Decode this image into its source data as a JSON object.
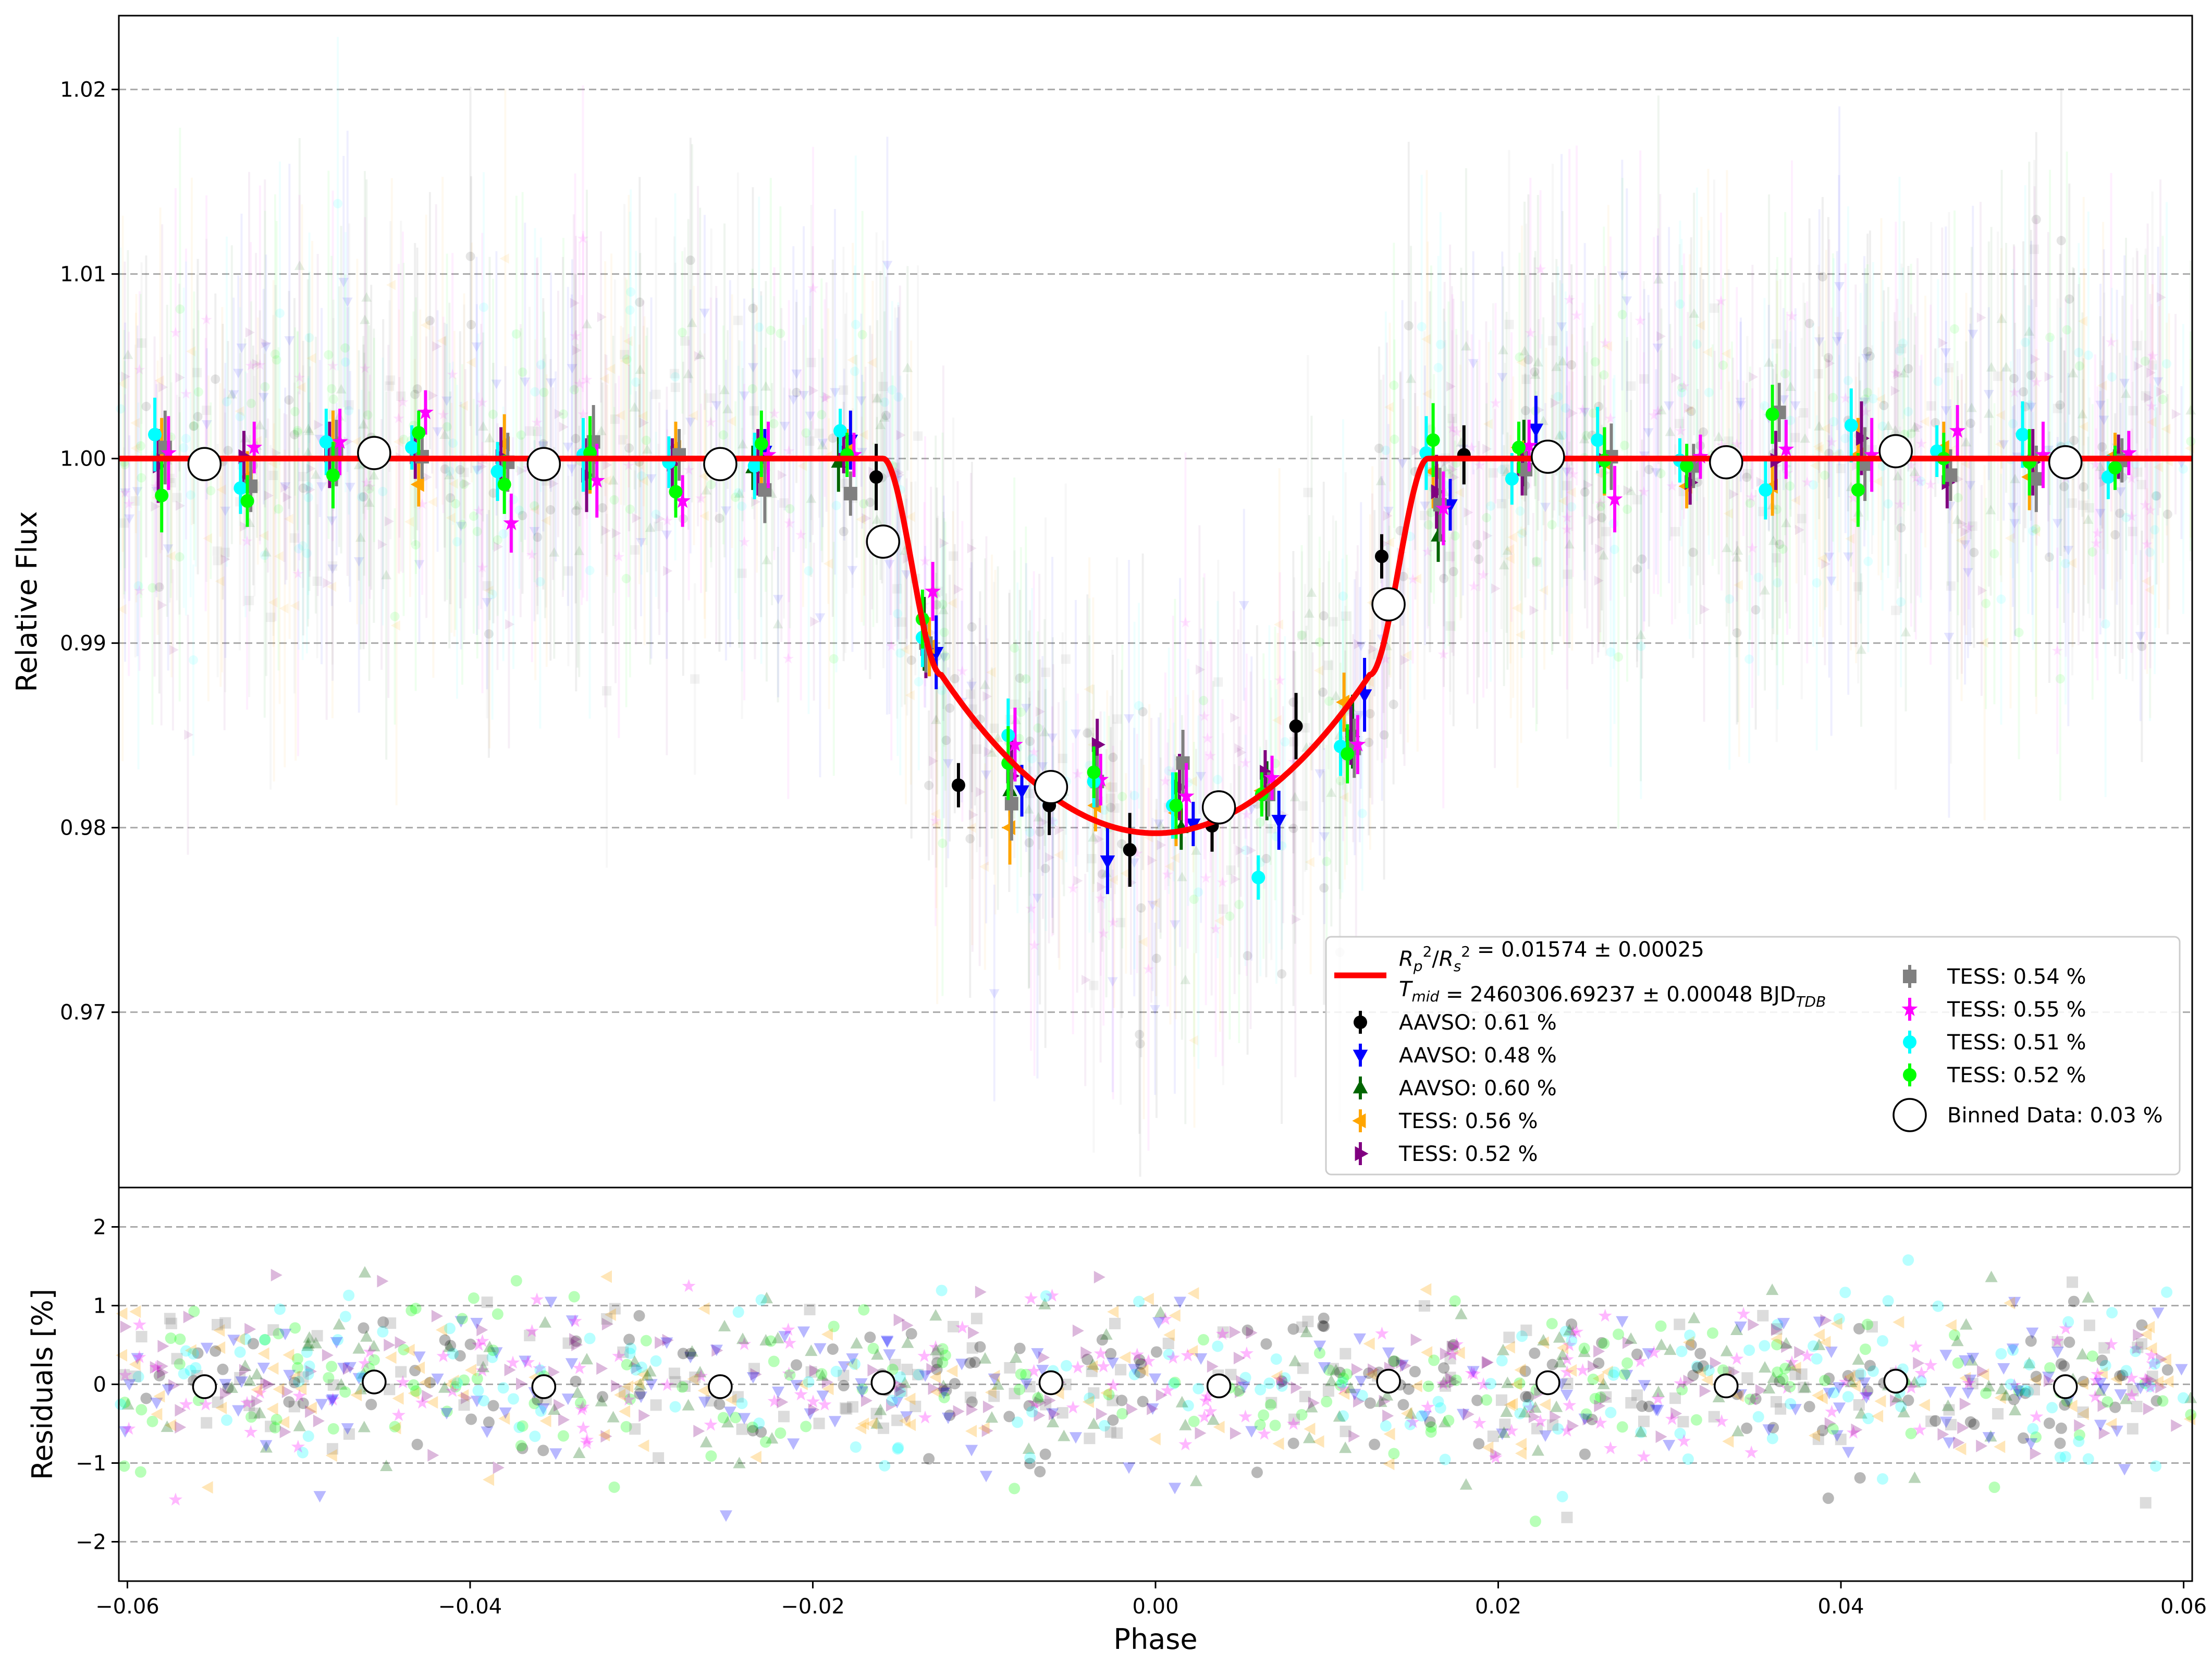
{
  "chart_data": [
    {
      "panel": "light-curve",
      "type": "scatter",
      "xlim": [
        -0.0605,
        0.0605
      ],
      "ylim": [
        0.9605,
        1.024
      ],
      "ylabel": "Relative Flux",
      "yticks": [
        0.97,
        0.98,
        0.99,
        1.0,
        1.01,
        1.02
      ],
      "ytick_labels": [
        "0.97",
        "0.98",
        "0.99",
        "1.00",
        "1.01",
        "1.02"
      ],
      "grid": "horizontal dashed",
      "legend_placement": "lower-right",
      "model": {
        "name_line1": "R_p^2/R_s^2 = 0.01574 ± 0.00025",
        "name_line2": "T_mid = 2460306.69237 ± 0.00048 BJD_TDB",
        "color": "#ff0000",
        "depth": 0.01574,
        "t1": 0.0159,
        "t2": 0.0125,
        "min_flux": 0.9797
      },
      "legend": {
        "model_ratio_value": " = 0.01574 ± 0.00025",
        "model_tmid_value": " = 2460306.69237 ± 0.00048 BJD",
        "model_tmid_sub": "TDB",
        "series_labels": [
          "AAVSO: 0.61 %",
          "AAVSO: 0.48 %",
          "AAVSO: 0.60 %",
          "TESS: 0.56 %",
          "TESS: 0.52 %",
          "TESS: 0.54 %",
          "TESS: 0.55 %",
          "TESS: 0.51 %",
          "TESS: 0.52 %",
          "Binned Data: 0.03 %"
        ]
      },
      "series": [
        {
          "name": "AAVSO: 0.61 %",
          "color": "#000000",
          "marker": "circle",
          "x": [
            -0.0163,
            -0.0115,
            -0.0062,
            -0.0015,
            0.0033,
            0.0082,
            0.0132,
            0.018
          ],
          "y": [
            0.999,
            0.9823,
            0.9812,
            0.9788,
            0.9801,
            0.9855,
            0.9947,
            1.0002
          ]
        },
        {
          "name": "AAVSO: 0.48 %",
          "color": "#0000ff",
          "marker": "triangle-down",
          "x": [
            -0.0228,
            -0.0178,
            -0.0128,
            -0.0078,
            -0.0028,
            0.0022,
            0.0072,
            0.0122,
            0.0172,
            0.0222
          ],
          "y": [
            1.0004,
            1.001,
            0.9895,
            0.982,
            0.9782,
            0.9802,
            0.9804,
            0.9872,
            0.9975,
            1.0016
          ]
        },
        {
          "name": "AAVSO: 0.60 %",
          "color": "#006400",
          "marker": "triangle-up",
          "x": [
            -0.0235,
            -0.0185,
            -0.0135,
            -0.0085,
            -0.0035,
            0.0015,
            0.0065,
            0.0115,
            0.0165,
            0.0215
          ],
          "y": [
            0.9995,
            0.9998,
            0.9905,
            0.982,
            0.983,
            0.98,
            0.982,
            0.9852,
            0.9958,
            1.0003
          ]
        },
        {
          "name": "TESS: 0.56 %",
          "color": "#ffa500",
          "marker": "triangle-left",
          "x": [
            -0.058,
            -0.053,
            -0.048,
            -0.043,
            -0.038,
            -0.033,
            -0.028,
            -0.023,
            -0.018,
            -0.0132,
            -0.0085,
            -0.0035,
            0.0012,
            0.0062,
            0.011,
            0.0162,
            0.0212,
            0.0262,
            0.031,
            0.036,
            0.041,
            0.046,
            0.051,
            0.056
          ],
          "y": [
            1.0002,
            0.999,
            1.0008,
            0.9986,
            1.0008,
            1.0001,
            1.0006,
            0.9998,
            1.0004,
            0.9898,
            0.98,
            0.9812,
            0.9808,
            0.982,
            0.9868,
            0.9993,
            1.0006,
            0.9998,
            0.9985,
            0.9985,
            1.0002,
            1.0006,
            0.999,
            1.0002
          ]
        },
        {
          "name": "TESS: 0.52 %",
          "color": "#800080",
          "marker": "triangle-right",
          "x": [
            -0.0582,
            -0.0532,
            -0.0482,
            -0.0432,
            -0.0382,
            -0.0332,
            -0.0282,
            -0.0232,
            -0.0182,
            -0.0134,
            -0.0084,
            -0.0034,
            0.0014,
            0.0064,
            0.0114,
            0.0164,
            0.0214,
            0.0262,
            0.0312,
            0.0362,
            0.0412,
            0.0462,
            0.0512,
            0.0562
          ],
          "y": [
            0.9996,
            1.0001,
            1.0002,
            1.0001,
            1.0001,
            0.9991,
            0.9997,
            0.9998,
            1.0004,
            0.9897,
            0.9828,
            0.9845,
            0.9822,
            0.983,
            0.985,
            0.9982,
            0.9994,
            0.9999,
            0.9987,
            0.9999,
            1.0011,
            0.9987,
            0.9998,
            1.0001
          ]
        },
        {
          "name": "TESS: 0.54 %",
          "color": "#808080",
          "marker": "square",
          "x": [
            -0.0578,
            -0.0528,
            -0.0478,
            -0.0428,
            -0.0378,
            -0.0328,
            -0.0278,
            -0.0228,
            -0.0178,
            -0.0134,
            -0.0084,
            -0.0034,
            0.0016,
            0.0066,
            0.0116,
            0.0166,
            0.0216,
            0.0266,
            0.0314,
            0.0364,
            0.0414,
            0.0464,
            0.0514,
            0.0564
          ],
          "y": [
            1.0006,
            0.9985,
            1.0003,
            1.0001,
            0.9998,
            1.0009,
            1.0002,
            0.9983,
            0.9981,
            0.99,
            0.9813,
            0.9825,
            0.9835,
            0.9818,
            0.9843,
            0.9975,
            0.9994,
            1.0001,
            0.9996,
            1.0025,
            0.9997,
            0.9991,
            0.9989,
            0.9999
          ]
        },
        {
          "name": "TESS: 0.55 %",
          "color": "#ff00ff",
          "marker": "star",
          "x": [
            -0.0576,
            -0.0526,
            -0.0476,
            -0.0426,
            -0.0376,
            -0.0326,
            -0.0276,
            -0.0226,
            -0.0176,
            -0.013,
            -0.0082,
            -0.0032,
            0.0018,
            0.0068,
            0.0118,
            0.0168,
            0.0218,
            0.0268,
            0.0318,
            0.0368,
            0.0418,
            0.0468,
            0.0518,
            0.0568
          ],
          "y": [
            1.0003,
            1.0006,
            1.0009,
            1.0025,
            0.9965,
            0.9988,
            0.9977,
            1.0002,
            1.0002,
            0.9928,
            0.9845,
            0.9826,
            0.9817,
            0.9827,
            0.9845,
            0.9973,
            1.0007,
            0.9978,
            1.0001,
            1.0005,
            1.0002,
            1.0015,
            1.0002,
            1.0003
          ]
        },
        {
          "name": "TESS: 0.51 %",
          "color": "#00ffff",
          "marker": "circle",
          "x": [
            -0.0584,
            -0.0534,
            -0.0484,
            -0.0434,
            -0.0384,
            -0.0334,
            -0.0284,
            -0.0234,
            -0.0184,
            -0.0136,
            -0.0086,
            -0.0036,
            0.001,
            0.006,
            0.0108,
            0.0158,
            0.0208,
            0.0258,
            0.0306,
            0.0356,
            0.0406,
            0.0456,
            0.0506,
            0.0556
          ],
          "y": [
            1.0013,
            0.9984,
            1.0009,
            1.0006,
            0.9993,
            1.0002,
            0.9998,
            0.9996,
            1.0015,
            0.9903,
            0.985,
            0.9825,
            0.9812,
            0.9773,
            0.9844,
            1.0003,
            0.9989,
            1.001,
            0.9999,
            0.9983,
            1.0018,
            1.0004,
            1.0013,
            0.999
          ]
        },
        {
          "name": "TESS: 0.52 %",
          "color": "#00ff00",
          "marker": "circle",
          "x": [
            -0.058,
            -0.053,
            -0.048,
            -0.043,
            -0.038,
            -0.033,
            -0.028,
            -0.023,
            -0.018,
            -0.0136,
            -0.0086,
            -0.0036,
            0.0012,
            0.0062,
            0.0112,
            0.0162,
            0.0212,
            0.0262,
            0.031,
            0.036,
            0.041,
            0.046,
            0.051,
            0.056
          ],
          "y": [
            0.998,
            0.9977,
            0.9991,
            1.0014,
            0.9986,
            1.0003,
            0.9982,
            1.0008,
            1.0002,
            0.9913,
            0.9835,
            0.983,
            0.9812,
            0.9818,
            0.984,
            1.001,
            1.0006,
            0.9999,
            0.9996,
            1.0024,
            0.9983,
            1.0,
            0.9998,
            0.9995
          ]
        },
        {
          "name": "Binned Data: 0.03 %",
          "color": "#ffffff",
          "marker": "open-circle",
          "x": [
            -0.0555,
            -0.0456,
            -0.0357,
            -0.0254,
            -0.0159,
            -0.0061,
            0.0037,
            0.0136,
            0.0229,
            0.0333,
            0.0432,
            0.0531
          ],
          "y": [
            0.9997,
            1.0003,
            0.9997,
            0.9997,
            0.9955,
            0.9822,
            0.9811,
            0.9921,
            1.0001,
            0.9998,
            1.0004,
            0.9998
          ]
        }
      ]
    },
    {
      "panel": "residuals",
      "type": "scatter",
      "xlabel": "Phase",
      "ylabel": "Residuals [%]",
      "xlim": [
        -0.0605,
        0.0605
      ],
      "ylim": [
        -2.5,
        2.5
      ],
      "xticks": [
        -0.06,
        -0.04,
        -0.02,
        0.0,
        0.02,
        0.04,
        0.06
      ],
      "xtick_labels": [
        "−0.06",
        "−0.04",
        "−0.02",
        "0.00",
        "0.02",
        "0.04",
        "0.06"
      ],
      "yticks": [
        -2,
        -1,
        0,
        1,
        2
      ],
      "ytick_labels": [
        "−2",
        "−1",
        "0",
        "1",
        "2"
      ],
      "grid": "horizontal dashed",
      "binned": {
        "name": "Binned Data: 0.03 %",
        "x": [
          -0.0555,
          -0.0456,
          -0.0357,
          -0.0254,
          -0.0159,
          -0.0061,
          0.0037,
          0.0136,
          0.0229,
          0.0333,
          0.0432,
          0.0531
        ],
        "y": [
          -0.03,
          0.03,
          -0.03,
          -0.03,
          0.02,
          0.02,
          -0.02,
          0.04,
          0.02,
          -0.02,
          0.04,
          -0.03
        ]
      },
      "scatter_sigma_percent": 0.5
    }
  ]
}
